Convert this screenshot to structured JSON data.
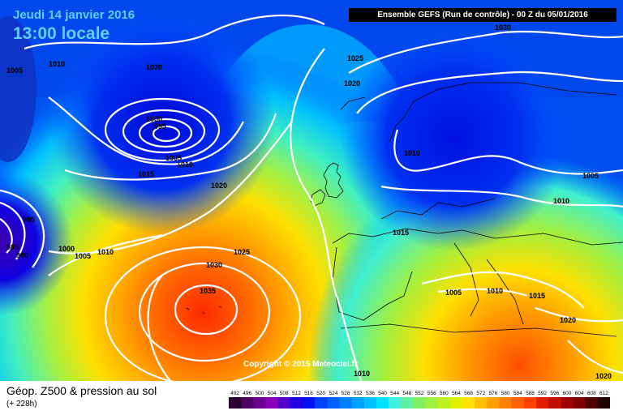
{
  "header": {
    "date": "Jeudi 14 janvier 2016",
    "time": "13:00 locale",
    "run_info": "Ensemble GEFS  (Run de contrôle)  -  00 Z du 05/01/2016"
  },
  "copyright": "Copyright © 2015 Meteociel.fr",
  "legend": {
    "title": "Géop. Z500 & pression au sol",
    "subtitle": "(+ 228h)",
    "values": [
      "492",
      "496",
      "500",
      "504",
      "508",
      "512",
      "516",
      "520",
      "524",
      "528",
      "532",
      "536",
      "540",
      "544",
      "548",
      "552",
      "556",
      "560",
      "564",
      "568",
      "572",
      "576",
      "580",
      "584",
      "588",
      "592",
      "596",
      "600",
      "604",
      "608",
      "612"
    ],
    "colors": [
      "#2a0030",
      "#4b0060",
      "#6a0090",
      "#8a00b8",
      "#5000c8",
      "#2000e0",
      "#0010f0",
      "#0040ff",
      "#0060ff",
      "#0080ff",
      "#00a0ff",
      "#00c0ff",
      "#00e0ff",
      "#40f0e0",
      "#60f0a0",
      "#80f060",
      "#a0f040",
      "#c0f020",
      "#e0f000",
      "#ffe000",
      "#ffc000",
      "#ffa000",
      "#ff8000",
      "#ff6000",
      "#ff4000",
      "#e02000",
      "#c01000",
      "#a00000",
      "#800000",
      "#500000",
      "#200000"
    ]
  },
  "isobars": [
    {
      "id": "l1030a",
      "text": "1030"
    },
    {
      "id": "l1030b",
      "text": "1030"
    },
    {
      "id": "l1025a",
      "text": "1025"
    },
    {
      "id": "l1020a",
      "text": "1020"
    },
    {
      "id": "l1010a",
      "text": "1010"
    },
    {
      "id": "l1005a",
      "text": "1005"
    },
    {
      "id": "l1000",
      "text": "1000"
    },
    {
      "id": "l995a",
      "text": "995"
    },
    {
      "id": "l1005b",
      "text": "1005"
    },
    {
      "id": "l1010b",
      "text": "1010"
    },
    {
      "id": "l1015a",
      "text": "1015"
    },
    {
      "id": "l1020b",
      "text": "1020"
    },
    {
      "id": "l1010c",
      "text": "1010"
    },
    {
      "id": "l1005c",
      "text": "1005"
    },
    {
      "id": "l1010d",
      "text": "1010"
    },
    {
      "id": "l1015b",
      "text": "1015"
    },
    {
      "id": "l995b",
      "text": "995"
    },
    {
      "id": "l985",
      "text": "985"
    },
    {
      "id": "l990",
      "text": "990"
    },
    {
      "id": "l1000b",
      "text": "1000"
    },
    {
      "id": "l1005d",
      "text": "1005"
    },
    {
      "id": "l1010e",
      "text": "1010"
    },
    {
      "id": "l1025b",
      "text": "1025"
    },
    {
      "id": "l1030c",
      "text": "1030"
    },
    {
      "id": "l1035",
      "text": "1035"
    },
    {
      "id": "l1005e",
      "text": "1005"
    },
    {
      "id": "l1010f",
      "text": "1010"
    },
    {
      "id": "l1015c",
      "text": "1015"
    },
    {
      "id": "l1020c",
      "text": "1020"
    },
    {
      "id": "l1010g",
      "text": "1010"
    },
    {
      "id": "l1020d",
      "text": "1020"
    }
  ]
}
